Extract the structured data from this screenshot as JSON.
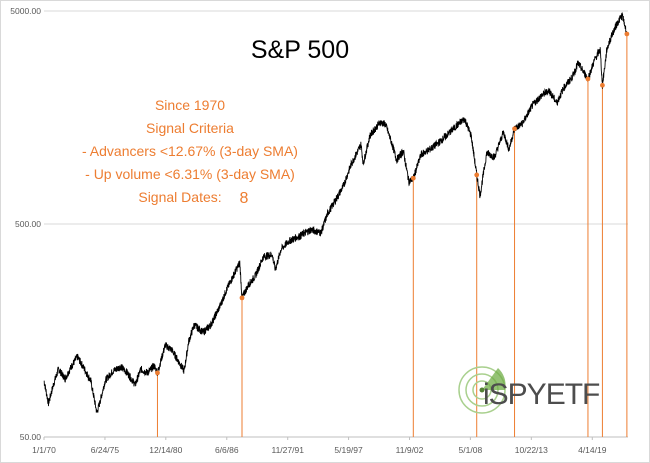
{
  "chart_data": {
    "type": "line",
    "title": "S&P 500",
    "y_scale": "log",
    "ylim": [
      50,
      5000
    ],
    "y_ticks": [
      "5000.00",
      "500.00",
      "50.00"
    ],
    "x_tick_labels": [
      "1/1/70",
      "6/24/75",
      "12/14/80",
      "6/6/86",
      "11/27/91",
      "5/19/97",
      "11/9/02",
      "5/1/08",
      "10/22/13",
      "4/14/19"
    ],
    "x_tick_years": [
      1970,
      1975.48,
      1980.95,
      1986.43,
      1991.91,
      1997.38,
      2002.86,
      2008.33,
      2013.81,
      2019.29
    ],
    "xlim": [
      1970,
      2022.5
    ],
    "grid": true,
    "annotation": {
      "lines": [
        "Since 1970",
        "Signal Criteria",
        "- Advancers <12.67% (3-day SMA)",
        "- Up volume <6.31% (3-day SMA)"
      ],
      "signal_dates_label": "Signal Dates:",
      "signal_dates_count": "8"
    },
    "series": [
      {
        "values": [
          [
            1970.0,
            92
          ],
          [
            1970.4,
            72
          ],
          [
            1970.9,
            90
          ],
          [
            1971.3,
            104
          ],
          [
            1971.9,
            94
          ],
          [
            1972.5,
            108
          ],
          [
            1973.0,
            119
          ],
          [
            1973.6,
            105
          ],
          [
            1974.2,
            92
          ],
          [
            1974.75,
            65
          ],
          [
            1975.0,
            72
          ],
          [
            1975.5,
            92
          ],
          [
            1976.2,
            102
          ],
          [
            1976.9,
            107
          ],
          [
            1977.5,
            100
          ],
          [
            1978.2,
            88
          ],
          [
            1978.7,
            104
          ],
          [
            1979.3,
            100
          ],
          [
            1979.9,
            108
          ],
          [
            1980.2,
            100
          ],
          [
            1980.9,
            135
          ],
          [
            1981.5,
            128
          ],
          [
            1982.6,
            102
          ],
          [
            1983.0,
            140
          ],
          [
            1983.5,
            168
          ],
          [
            1984.3,
            155
          ],
          [
            1985.0,
            168
          ],
          [
            1985.9,
            210
          ],
          [
            1986.4,
            245
          ],
          [
            1987.6,
            330
          ],
          [
            1987.8,
            225
          ],
          [
            1988.4,
            260
          ],
          [
            1989.0,
            285
          ],
          [
            1989.7,
            350
          ],
          [
            1990.5,
            360
          ],
          [
            1990.8,
            305
          ],
          [
            1991.3,
            380
          ],
          [
            1992.0,
            415
          ],
          [
            1993.0,
            440
          ],
          [
            1994.0,
            470
          ],
          [
            1994.9,
            455
          ],
          [
            1995.5,
            560
          ],
          [
            1996.0,
            620
          ],
          [
            1996.9,
            750
          ],
          [
            1997.6,
            950
          ],
          [
            1998.5,
            1180
          ],
          [
            1998.7,
            960
          ],
          [
            1999.3,
            1300
          ],
          [
            2000.2,
            1500
          ],
          [
            2000.7,
            1470
          ],
          [
            2001.3,
            1180
          ],
          [
            2001.7,
            1000
          ],
          [
            2002.3,
            1100
          ],
          [
            2002.8,
            790
          ],
          [
            2003.2,
            820
          ],
          [
            2003.9,
            1060
          ],
          [
            2004.8,
            1130
          ],
          [
            2005.7,
            1230
          ],
          [
            2006.8,
            1400
          ],
          [
            2007.8,
            1560
          ],
          [
            2008.4,
            1300
          ],
          [
            2008.9,
            850
          ],
          [
            2009.2,
            680
          ],
          [
            2009.8,
            1080
          ],
          [
            2010.5,
            1030
          ],
          [
            2011.3,
            1350
          ],
          [
            2011.8,
            1120
          ],
          [
            2012.3,
            1400
          ],
          [
            2013.0,
            1480
          ],
          [
            2013.9,
            1800
          ],
          [
            2014.7,
            2000
          ],
          [
            2015.4,
            2120
          ],
          [
            2016.1,
            1850
          ],
          [
            2016.7,
            2170
          ],
          [
            2017.5,
            2450
          ],
          [
            2018.0,
            2850
          ],
          [
            2018.9,
            2400
          ],
          [
            2019.5,
            2950
          ],
          [
            2020.0,
            3300
          ],
          [
            2020.2,
            2240
          ],
          [
            2020.6,
            3300
          ],
          [
            2021.0,
            3800
          ],
          [
            2021.5,
            4350
          ],
          [
            2021.98,
            4780
          ],
          [
            2022.25,
            4200
          ],
          [
            2022.4,
            3900
          ]
        ]
      }
    ],
    "signals": [
      {
        "x": 1980.2,
        "y": 100
      },
      {
        "x": 1987.8,
        "y": 225
      },
      {
        "x": 2003.2,
        "y": 820
      },
      {
        "x": 2008.9,
        "y": 850
      },
      {
        "x": 2012.3,
        "y": 1400
      },
      {
        "x": 2018.9,
        "y": 2400
      },
      {
        "x": 2020.2,
        "y": 2240
      },
      {
        "x": 2022.4,
        "y": 3900
      }
    ],
    "colors": {
      "price_line": "#000000",
      "signal": "#ed7d31",
      "gridline": "#d9d9d9",
      "text": "#ed7d31"
    }
  },
  "logo": {
    "text": "iSPYETF",
    "name": "iSPYETF"
  }
}
